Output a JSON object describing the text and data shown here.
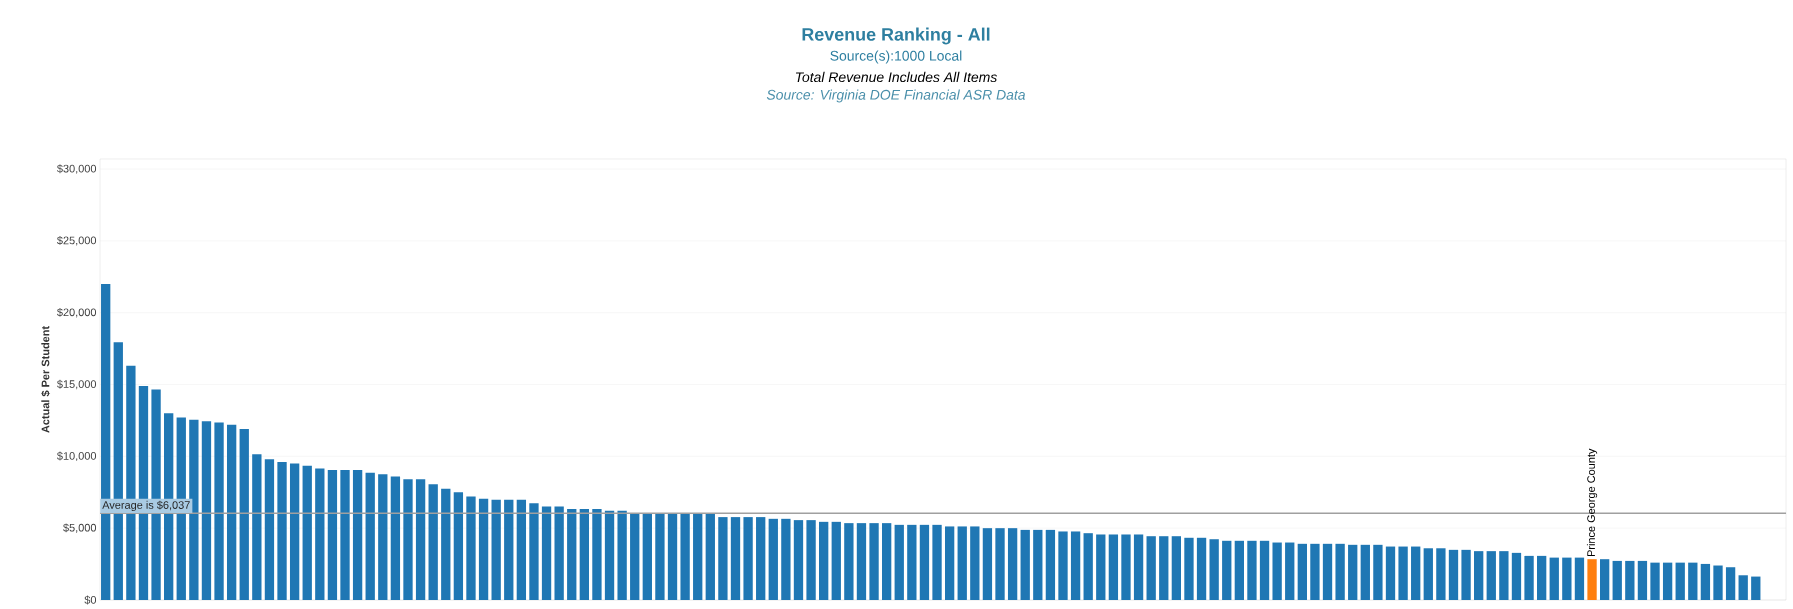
{
  "chart_data": {
    "type": "bar",
    "title": "Revenue Ranking - All",
    "subtitle": "Source(s):1000 Local",
    "annotations": [
      "Total Revenue Includes All Items",
      "Source: Virginia DOE Financial ASR Data"
    ],
    "ylabel": "Actual $ Per Student",
    "categories": [
      null,
      null,
      null,
      null,
      null,
      null,
      null,
      null,
      null,
      null,
      null,
      null,
      null,
      null,
      null,
      null,
      null,
      null,
      null,
      null,
      null,
      null,
      null,
      null,
      null,
      null,
      null,
      null,
      null,
      null,
      null,
      null,
      null,
      null,
      null,
      null,
      null,
      null,
      null,
      null,
      null,
      null,
      null,
      null,
      null,
      null,
      null,
      null,
      null,
      null,
      null,
      null,
      null,
      null,
      null,
      null,
      null,
      null,
      null,
      null,
      null,
      null,
      null,
      null,
      null,
      null,
      null,
      null,
      null,
      null,
      null,
      null,
      null,
      null,
      null,
      null,
      null,
      null,
      null,
      null,
      null,
      null,
      null,
      null,
      null,
      null,
      null,
      null,
      null,
      null,
      null,
      null,
      null,
      null,
      null,
      null,
      null,
      null,
      null,
      null,
      null,
      null,
      null,
      null,
      null,
      null,
      null,
      null,
      null,
      null,
      null,
      null,
      null,
      null,
      null,
      null,
      null,
      null,
      "Prince George County",
      null,
      null,
      null,
      null,
      null,
      null,
      null,
      null,
      null,
      null,
      null,
      null,
      null
    ],
    "values": [
      22000,
      17950,
      16300,
      14900,
      14650,
      13000,
      12700,
      12550,
      12450,
      12350,
      12200,
      11900,
      10150,
      9800,
      9600,
      9500,
      9350,
      9150,
      9050,
      9050,
      9050,
      8850,
      8750,
      8600,
      8400,
      8400,
      8050,
      7750,
      7500,
      7200,
      7050,
      6980,
      6980,
      6980,
      6740,
      6510,
      6510,
      6330,
      6330,
      6330,
      6210,
      6210,
      5980,
      5980,
      5980,
      5980,
      5980,
      5980,
      5980,
      5770,
      5770,
      5770,
      5770,
      5650,
      5650,
      5560,
      5560,
      5440,
      5440,
      5350,
      5350,
      5350,
      5350,
      5230,
      5230,
      5230,
      5230,
      5120,
      5120,
      5120,
      5000,
      5000,
      5000,
      4880,
      4880,
      4880,
      4770,
      4770,
      4650,
      4560,
      4560,
      4560,
      4560,
      4440,
      4440,
      4440,
      4330,
      4330,
      4230,
      4120,
      4120,
      4120,
      4120,
      4000,
      4000,
      3910,
      3910,
      3910,
      3910,
      3840,
      3840,
      3840,
      3720,
      3720,
      3720,
      3600,
      3600,
      3490,
      3490,
      3400,
      3400,
      3400,
      3280,
      3070,
      3070,
      2950,
      2950,
      2950,
      2840,
      2840,
      2720,
      2720,
      2720,
      2600,
      2600,
      2600,
      2600,
      2510,
      2400,
      2280,
      1720,
      1630
    ],
    "colors": [
      "#1f77b4",
      "#1f77b4",
      "#1f77b4",
      "#1f77b4",
      "#1f77b4",
      "#1f77b4",
      "#1f77b4",
      "#1f77b4",
      "#1f77b4",
      "#1f77b4",
      "#1f77b4",
      "#1f77b4",
      "#1f77b4",
      "#1f77b4",
      "#1f77b4",
      "#1f77b4",
      "#1f77b4",
      "#1f77b4",
      "#1f77b4",
      "#1f77b4",
      "#1f77b4",
      "#1f77b4",
      "#1f77b4",
      "#1f77b4",
      "#1f77b4",
      "#1f77b4",
      "#1f77b4",
      "#1f77b4",
      "#1f77b4",
      "#1f77b4",
      "#1f77b4",
      "#1f77b4",
      "#1f77b4",
      "#1f77b4",
      "#1f77b4",
      "#1f77b4",
      "#1f77b4",
      "#1f77b4",
      "#1f77b4",
      "#1f77b4",
      "#1f77b4",
      "#1f77b4",
      "#1f77b4",
      "#1f77b4",
      "#1f77b4",
      "#1f77b4",
      "#1f77b4",
      "#1f77b4",
      "#1f77b4",
      "#1f77b4",
      "#1f77b4",
      "#1f77b4",
      "#1f77b4",
      "#1f77b4",
      "#1f77b4",
      "#1f77b4",
      "#1f77b4",
      "#1f77b4",
      "#1f77b4",
      "#1f77b4",
      "#1f77b4",
      "#1f77b4",
      "#1f77b4",
      "#1f77b4",
      "#1f77b4",
      "#1f77b4",
      "#1f77b4",
      "#1f77b4",
      "#1f77b4",
      "#1f77b4",
      "#1f77b4",
      "#1f77b4",
      "#1f77b4",
      "#1f77b4",
      "#1f77b4",
      "#1f77b4",
      "#1f77b4",
      "#1f77b4",
      "#1f77b4",
      "#1f77b4",
      "#1f77b4",
      "#1f77b4",
      "#1f77b4",
      "#1f77b4",
      "#1f77b4",
      "#1f77b4",
      "#1f77b4",
      "#1f77b4",
      "#1f77b4",
      "#1f77b4",
      "#1f77b4",
      "#1f77b4",
      "#1f77b4",
      "#1f77b4",
      "#1f77b4",
      "#1f77b4",
      "#1f77b4",
      "#1f77b4",
      "#1f77b4",
      "#1f77b4",
      "#1f77b4",
      "#1f77b4",
      "#1f77b4",
      "#1f77b4",
      "#1f77b4",
      "#1f77b4",
      "#1f77b4",
      "#1f77b4",
      "#1f77b4",
      "#1f77b4",
      "#1f77b4",
      "#1f77b4",
      "#1f77b4",
      "#1f77b4",
      "#1f77b4",
      "#1f77b4",
      "#1f77b4",
      "#1f77b4",
      "#ff7f0e",
      "#1f77b4",
      "#1f77b4",
      "#1f77b4",
      "#1f77b4",
      "#1f77b4",
      "#1f77b4",
      "#1f77b4",
      "#1f77b4",
      "#1f77b4",
      "#1f77b4",
      "#1f77b4",
      "#1f77b4",
      "#1f77b4"
    ],
    "ylim": [
      0,
      30700
    ],
    "yticks": [
      {
        "value": 0,
        "label": "$0"
      },
      {
        "value": 5000,
        "label": "$5,000"
      },
      {
        "value": 10000,
        "label": "$10,000"
      },
      {
        "value": 15000,
        "label": "$15,000"
      },
      {
        "value": 20000,
        "label": "$20,000"
      },
      {
        "value": 25000,
        "label": "$25,000"
      },
      {
        "value": 30000,
        "label": "$30,000"
      }
    ],
    "grid": "y",
    "ref_lines": [
      {
        "axis": "y",
        "value": 6037,
        "label": "Average is $6,037",
        "color": "#a0a0a0"
      }
    ]
  }
}
